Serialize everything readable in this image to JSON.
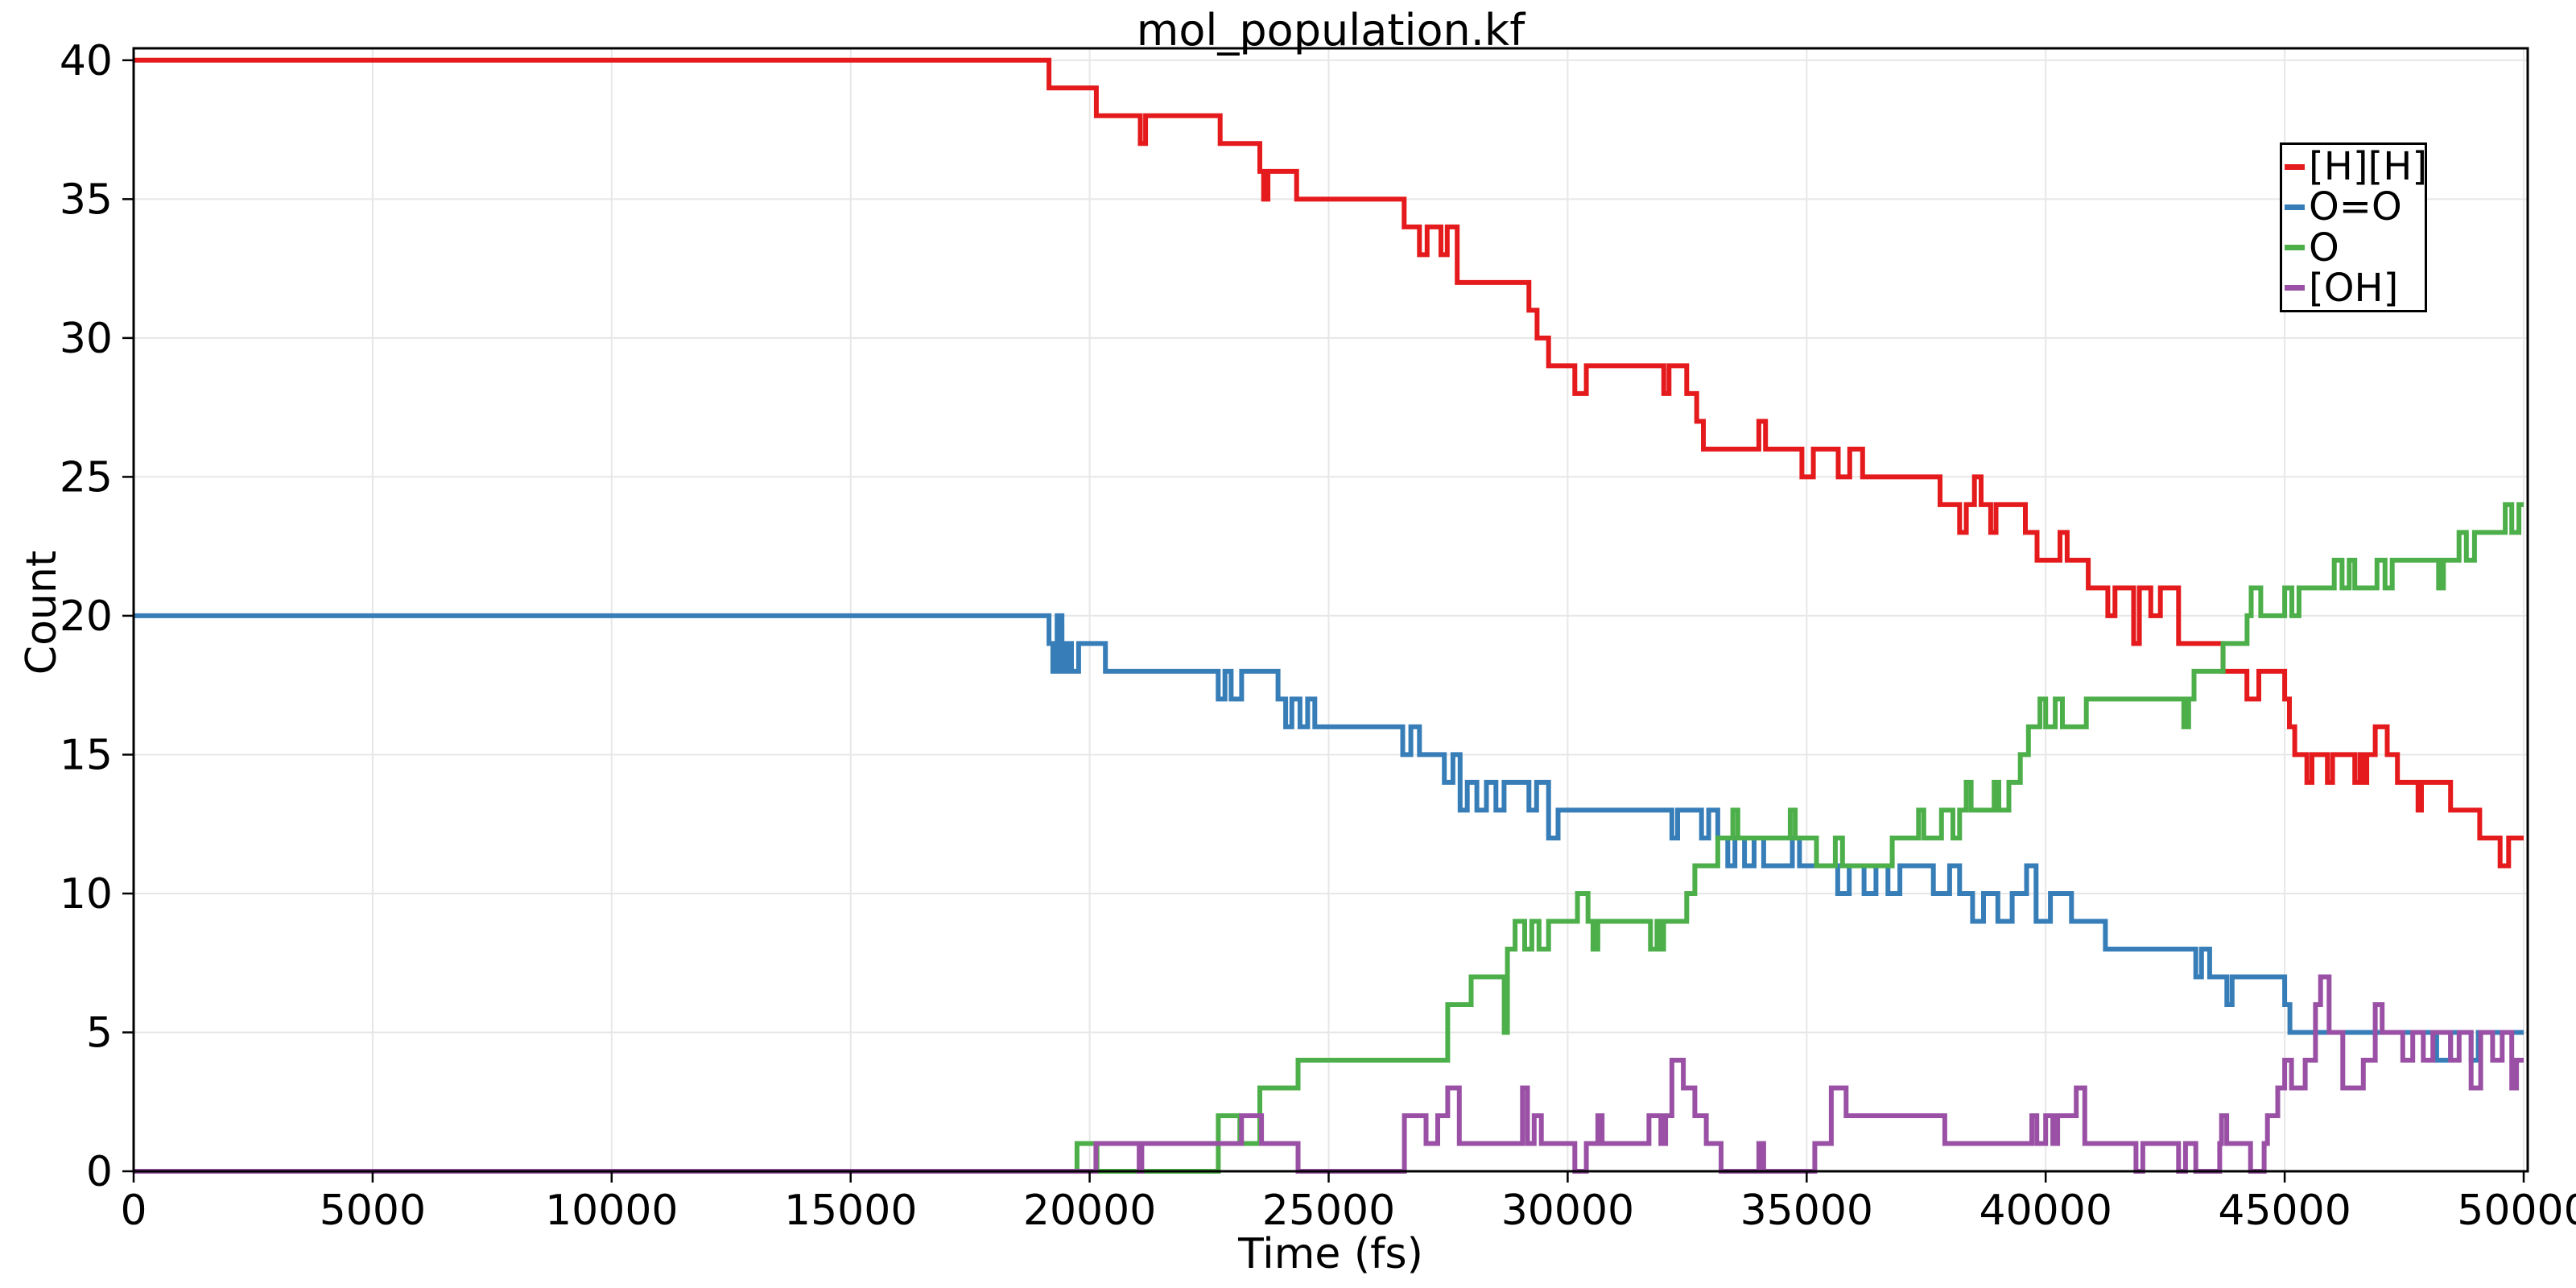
{
  "chart_data": {
    "type": "line",
    "subtype": "step-post",
    "title": "mol_population.kf",
    "xlabel": "Time (fs)",
    "ylabel": "Count",
    "xlim": [
      0,
      50084
    ],
    "ylim": [
      0,
      40.43
    ],
    "xticks": [
      0,
      5000,
      10000,
      15000,
      20000,
      25000,
      30000,
      35000,
      40000,
      45000,
      50000
    ],
    "yticks": [
      0,
      5,
      10,
      15,
      20,
      25,
      30,
      35,
      40
    ],
    "grid": true,
    "grid_color": "#e7e7e7",
    "axis_color": "#000000",
    "legend_position": "upper right",
    "series": [
      {
        "name": "[H][H]",
        "color": "#e41a1c",
        "points": [
          [
            0,
            40
          ],
          [
            19150,
            39
          ],
          [
            20140,
            38
          ],
          [
            21060,
            37
          ],
          [
            21170,
            38
          ],
          [
            22730,
            37
          ],
          [
            23560,
            36
          ],
          [
            23640,
            35
          ],
          [
            23730,
            36
          ],
          [
            24330,
            35
          ],
          [
            26580,
            34
          ],
          [
            26900,
            33
          ],
          [
            27060,
            34
          ],
          [
            27350,
            33
          ],
          [
            27480,
            34
          ],
          [
            27690,
            32
          ],
          [
            29190,
            31
          ],
          [
            29360,
            30
          ],
          [
            29600,
            29
          ],
          [
            30150,
            28
          ],
          [
            30390,
            29
          ],
          [
            32010,
            28
          ],
          [
            32120,
            29
          ],
          [
            32490,
            28
          ],
          [
            32700,
            27
          ],
          [
            32840,
            26
          ],
          [
            34000,
            27
          ],
          [
            34140,
            26
          ],
          [
            34900,
            25
          ],
          [
            35140,
            26
          ],
          [
            35660,
            25
          ],
          [
            35900,
            26
          ],
          [
            36170,
            25
          ],
          [
            37790,
            24
          ],
          [
            38200,
            23
          ],
          [
            38340,
            24
          ],
          [
            38510,
            25
          ],
          [
            38650,
            24
          ],
          [
            38850,
            23
          ],
          [
            38960,
            24
          ],
          [
            39575,
            23
          ],
          [
            39820,
            22
          ],
          [
            40300,
            23
          ],
          [
            40450,
            22
          ],
          [
            40890,
            21
          ],
          [
            41300,
            20
          ],
          [
            41450,
            21
          ],
          [
            41840,
            19
          ],
          [
            41960,
            21
          ],
          [
            42200,
            20
          ],
          [
            42400,
            21
          ],
          [
            42780,
            19
          ],
          [
            43710,
            18
          ],
          [
            44210,
            17
          ],
          [
            44460,
            18
          ],
          [
            45000,
            17
          ],
          [
            45100,
            16
          ],
          [
            45210,
            15
          ],
          [
            45465,
            14
          ],
          [
            45570,
            15
          ],
          [
            45894,
            14
          ],
          [
            46001,
            15
          ],
          [
            46466,
            14
          ],
          [
            46574,
            15
          ],
          [
            46645,
            14
          ],
          [
            46717,
            15
          ],
          [
            46895,
            16
          ],
          [
            47146,
            15
          ],
          [
            47360,
            14
          ],
          [
            47790,
            13
          ],
          [
            47861,
            14
          ],
          [
            48470,
            13
          ],
          [
            49080,
            12
          ],
          [
            49506,
            11
          ],
          [
            49685,
            12
          ]
        ]
      },
      {
        "name": "O=O",
        "color": "#377eb8",
        "points": [
          [
            0,
            20
          ],
          [
            19150,
            19
          ],
          [
            19230,
            18
          ],
          [
            19320,
            20
          ],
          [
            19420,
            18
          ],
          [
            19520,
            19
          ],
          [
            19620,
            18
          ],
          [
            19770,
            19
          ],
          [
            20330,
            18
          ],
          [
            20470,
            18
          ],
          [
            22690,
            17
          ],
          [
            22830,
            18
          ],
          [
            22960,
            17
          ],
          [
            23180,
            18
          ],
          [
            23940,
            17
          ],
          [
            24100,
            16
          ],
          [
            24230,
            17
          ],
          [
            24400,
            16
          ],
          [
            24560,
            17
          ],
          [
            24710,
            16
          ],
          [
            26550,
            15
          ],
          [
            26720,
            16
          ],
          [
            26900,
            15
          ],
          [
            27420,
            14
          ],
          [
            27600,
            15
          ],
          [
            27750,
            13
          ],
          [
            27900,
            14
          ],
          [
            28100,
            13
          ],
          [
            28300,
            14
          ],
          [
            28500,
            13
          ],
          [
            28670,
            14
          ],
          [
            29190,
            13
          ],
          [
            29350,
            14
          ],
          [
            29600,
            12
          ],
          [
            29800,
            13
          ],
          [
            32180,
            12
          ],
          [
            32300,
            13
          ],
          [
            32800,
            12
          ],
          [
            32950,
            13
          ],
          [
            33140,
            12
          ],
          [
            33350,
            11
          ],
          [
            33500,
            12
          ],
          [
            33700,
            11
          ],
          [
            33900,
            12
          ],
          [
            34100,
            11
          ],
          [
            34700,
            12
          ],
          [
            34850,
            11
          ],
          [
            35650,
            10
          ],
          [
            35890,
            11
          ],
          [
            36200,
            10
          ],
          [
            36450,
            11
          ],
          [
            36700,
            10
          ],
          [
            36950,
            11
          ],
          [
            37650,
            10
          ],
          [
            37990,
            11
          ],
          [
            38200,
            10
          ],
          [
            38470,
            9
          ],
          [
            38700,
            10
          ],
          [
            39000,
            9
          ],
          [
            39300,
            10
          ],
          [
            39600,
            11
          ],
          [
            39800,
            9
          ],
          [
            40100,
            10
          ],
          [
            40540,
            9
          ],
          [
            41250,
            8
          ],
          [
            43140,
            7
          ],
          [
            43260,
            8
          ],
          [
            43430,
            7
          ],
          [
            43790,
            6
          ],
          [
            43900,
            7
          ],
          [
            45000,
            6
          ],
          [
            45110,
            5
          ],
          [
            48180,
            4
          ],
          [
            48470,
            5
          ],
          [
            48900,
            4
          ],
          [
            49050,
            5
          ]
        ]
      },
      {
        "name": "O",
        "color": "#4daf4a",
        "points": [
          [
            0,
            0
          ],
          [
            19736,
            1
          ],
          [
            20153,
            0
          ],
          [
            22691,
            2
          ],
          [
            23143,
            1
          ],
          [
            23560,
            3
          ],
          [
            24360,
            4
          ],
          [
            27490,
            6
          ],
          [
            27980,
            7
          ],
          [
            28672,
            5
          ],
          [
            28741,
            8
          ],
          [
            28900,
            9
          ],
          [
            29100,
            8
          ],
          [
            29250,
            9
          ],
          [
            29400,
            8
          ],
          [
            29600,
            9
          ],
          [
            30206,
            10
          ],
          [
            30426,
            9
          ],
          [
            30530,
            8
          ],
          [
            30632,
            9
          ],
          [
            31733,
            8
          ],
          [
            31870,
            9
          ],
          [
            31950,
            8
          ],
          [
            32008,
            9
          ],
          [
            32490,
            10
          ],
          [
            32660,
            11
          ],
          [
            33140,
            12
          ],
          [
            33455,
            13
          ],
          [
            33560,
            12
          ],
          [
            34657,
            13
          ],
          [
            34760,
            12
          ],
          [
            35205,
            11
          ],
          [
            35600,
            12
          ],
          [
            35750,
            11
          ],
          [
            36790,
            12
          ],
          [
            37340,
            13
          ],
          [
            37450,
            12
          ],
          [
            37820,
            13
          ],
          [
            38060,
            12
          ],
          [
            38200,
            13
          ],
          [
            38337,
            14
          ],
          [
            38440,
            13
          ],
          [
            38922,
            14
          ],
          [
            39020,
            13
          ],
          [
            39230,
            14
          ],
          [
            39470,
            15
          ],
          [
            39640,
            16
          ],
          [
            39880,
            17
          ],
          [
            40000,
            16
          ],
          [
            40200,
            17
          ],
          [
            40350,
            16
          ],
          [
            40851,
            17
          ],
          [
            42890,
            16
          ],
          [
            42990,
            17
          ],
          [
            43104,
            18
          ],
          [
            43712,
            19
          ],
          [
            44213,
            20
          ],
          [
            44300,
            21
          ],
          [
            44499,
            20
          ],
          [
            45000,
            21
          ],
          [
            45150,
            20
          ],
          [
            45300,
            21
          ],
          [
            46037,
            22
          ],
          [
            46200,
            21
          ],
          [
            46350,
            22
          ],
          [
            46466,
            21
          ],
          [
            46931,
            22
          ],
          [
            47100,
            21
          ],
          [
            47250,
            22
          ],
          [
            48219,
            21
          ],
          [
            48320,
            22
          ],
          [
            48648,
            23
          ],
          [
            48800,
            22
          ],
          [
            48970,
            23
          ],
          [
            49614,
            24
          ],
          [
            49750,
            23
          ],
          [
            49900,
            24
          ]
        ]
      },
      {
        "name": "[OH]",
        "color": "#9a51a5",
        "points": [
          [
            0,
            0
          ],
          [
            20132,
            1
          ],
          [
            21036,
            0
          ],
          [
            21092,
            1
          ],
          [
            23178,
            2
          ],
          [
            23595,
            1
          ],
          [
            24360,
            0
          ],
          [
            26585,
            2
          ],
          [
            27037,
            1
          ],
          [
            27281,
            2
          ],
          [
            27490,
            3
          ],
          [
            27733,
            1
          ],
          [
            29055,
            3
          ],
          [
            29160,
            1
          ],
          [
            29300,
            2
          ],
          [
            29450,
            1
          ],
          [
            30150,
            0
          ],
          [
            30390,
            1
          ],
          [
            30632,
            2
          ],
          [
            30720,
            1
          ],
          [
            31700,
            2
          ],
          [
            31950,
            1
          ],
          [
            32050,
            2
          ],
          [
            32180,
            4
          ],
          [
            32420,
            3
          ],
          [
            32660,
            2
          ],
          [
            32900,
            1
          ],
          [
            33210,
            0
          ],
          [
            34000,
            1
          ],
          [
            34100,
            0
          ],
          [
            35170,
            1
          ],
          [
            35515,
            3
          ],
          [
            35825,
            2
          ],
          [
            37890,
            1
          ],
          [
            39710,
            2
          ],
          [
            39815,
            1
          ],
          [
            40000,
            2
          ],
          [
            40150,
            1
          ],
          [
            40250,
            2
          ],
          [
            40640,
            3
          ],
          [
            40818,
            1
          ],
          [
            41890,
            0
          ],
          [
            42033,
            1
          ],
          [
            42780,
            0
          ],
          [
            42925,
            1
          ],
          [
            43140,
            0
          ],
          [
            43640,
            1
          ],
          [
            43680,
            2
          ],
          [
            43787,
            1
          ],
          [
            44285,
            0
          ],
          [
            44570,
            1
          ],
          [
            44640,
            2
          ],
          [
            44855,
            3
          ],
          [
            45000,
            4
          ],
          [
            45143,
            3
          ],
          [
            45430,
            4
          ],
          [
            45644,
            6
          ],
          [
            45751,
            7
          ],
          [
            45930,
            5
          ],
          [
            46216,
            3
          ],
          [
            46645,
            4
          ],
          [
            46895,
            6
          ],
          [
            47040,
            5
          ],
          [
            47470,
            4
          ],
          [
            47680,
            5
          ],
          [
            47900,
            4
          ],
          [
            48100,
            5
          ],
          [
            48470,
            4
          ],
          [
            48650,
            5
          ],
          [
            48900,
            3
          ],
          [
            49100,
            5
          ],
          [
            49350,
            4
          ],
          [
            49550,
            5
          ],
          [
            49750,
            3
          ],
          [
            49850,
            4
          ]
        ]
      }
    ]
  }
}
